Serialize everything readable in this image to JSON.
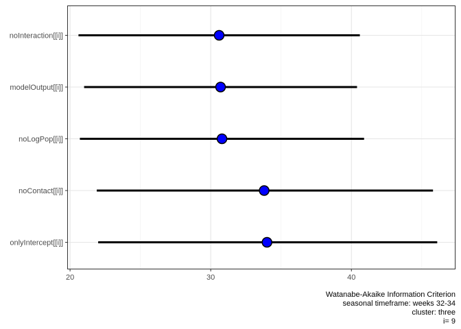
{
  "chart_data": {
    "type": "dot-interval",
    "title": "",
    "xlabel": "",
    "ylabel": "",
    "xlim": [
      19.8,
      47.4
    ],
    "xticks": [
      20,
      30,
      40
    ],
    "grid": true,
    "categories": [
      "noInteraction[[i]]",
      "modelOutput[[i]]",
      "noLogPop[[i]]",
      "noContact[[i]]",
      "onlyIntercept[[i]]"
    ],
    "estimates": [
      30.6,
      30.7,
      30.8,
      33.8,
      34.0
    ],
    "lower": [
      20.6,
      21.0,
      20.7,
      21.9,
      22.0
    ],
    "upper": [
      40.6,
      40.4,
      40.9,
      45.8,
      46.1
    ],
    "point_color": "#0000ff"
  },
  "caption": {
    "line1": "Watanabe-Akaike Information Criterion",
    "line2": "seasonal timeframe: weeks 32-34",
    "line3": "cluster: three",
    "line4": "i= 9"
  }
}
